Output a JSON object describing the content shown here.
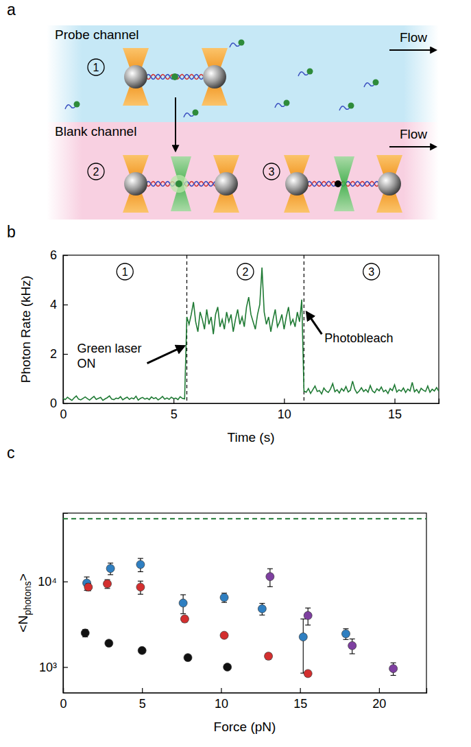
{
  "diagram": {
    "panel": "a",
    "channels": [
      {
        "label": "Probe channel",
        "flow": "Flow"
      },
      {
        "label": "Blank channel",
        "flow": "Flow"
      }
    ],
    "steps": [
      "1",
      "2",
      "3"
    ]
  },
  "chart_data": [
    {
      "type": "line",
      "panel": "b",
      "xlabel": "Time (s)",
      "ylabel": "Photon Rate (kHz)",
      "xlim": [
        0,
        17
      ],
      "ylim": [
        0,
        6
      ],
      "xticks": [
        0,
        5,
        10,
        15
      ],
      "yticks": [
        0,
        2,
        4,
        6
      ],
      "x": [
        0,
        0.1,
        0.2,
        0.3,
        0.4,
        0.5,
        0.6,
        0.7,
        0.8,
        0.9,
        1,
        1.1,
        1.2,
        1.3,
        1.4,
        1.5,
        1.6,
        1.7,
        1.8,
        1.9,
        2,
        2.1,
        2.2,
        2.3,
        2.4,
        2.5,
        2.6,
        2.7,
        2.8,
        2.9,
        3,
        3.1,
        3.2,
        3.3,
        3.4,
        3.5,
        3.6,
        3.7,
        3.8,
        3.9,
        4,
        4.1,
        4.2,
        4.3,
        4.4,
        4.5,
        4.6,
        4.7,
        4.8,
        4.9,
        5,
        5.1,
        5.2,
        5.3,
        5.4,
        5.5,
        5.6,
        5.7,
        5.8,
        5.9,
        6,
        6.1,
        6.2,
        6.3,
        6.4,
        6.5,
        6.6,
        6.7,
        6.8,
        6.9,
        7,
        7.1,
        7.2,
        7.3,
        7.4,
        7.5,
        7.6,
        7.7,
        7.8,
        7.9,
        8,
        8.1,
        8.2,
        8.3,
        8.4,
        8.5,
        8.6,
        8.7,
        8.8,
        8.9,
        9,
        9.1,
        9.2,
        9.3,
        9.4,
        9.5,
        9.6,
        9.7,
        9.8,
        9.9,
        10,
        10.1,
        10.2,
        10.3,
        10.4,
        10.5,
        10.6,
        10.7,
        10.8,
        10.9,
        11,
        11.1,
        11.2,
        11.3,
        11.4,
        11.5,
        11.6,
        11.7,
        11.8,
        11.9,
        12,
        12.1,
        12.2,
        12.3,
        12.4,
        12.5,
        12.6,
        12.7,
        12.8,
        12.9,
        13,
        13.1,
        13.2,
        13.3,
        13.4,
        13.5,
        13.6,
        13.7,
        13.8,
        13.9,
        14,
        14.1,
        14.2,
        14.3,
        14.4,
        14.5,
        14.6,
        14.7,
        14.8,
        14.9,
        15,
        15.1,
        15.2,
        15.3,
        15.4,
        15.5,
        15.6,
        15.7,
        15.8,
        15.9,
        16,
        16.1,
        16.2,
        16.3,
        16.4,
        16.5,
        16.6,
        16.7,
        16.8,
        16.9,
        17
      ],
      "series": [
        {
          "color": "#1f7a34",
          "values": [
            0.2,
            0.15,
            0.25,
            0.18,
            0.12,
            0.22,
            0.3,
            0.17,
            0.14,
            0.2,
            0.26,
            0.19,
            0.13,
            0.21,
            0.28,
            0.16,
            0.2,
            0.24,
            0.12,
            0.18,
            0.23,
            0.3,
            0.17,
            0.15,
            0.21,
            0.19,
            0.27,
            0.14,
            0.2,
            0.25,
            0.16,
            0.22,
            0.18,
            0.29,
            0.13,
            0.2,
            0.24,
            0.17,
            0.21,
            0.15,
            0.26,
            0.19,
            0.23,
            0.14,
            0.2,
            0.28,
            0.17,
            0.22,
            0.16,
            0.25,
            0.19,
            0.21,
            0.15,
            0.27,
            0.2,
            0.18,
            3.5,
            3.2,
            3.6,
            4.1,
            3.3,
            2.9,
            3.7,
            3.4,
            3.0,
            3.8,
            3.2,
            3.5,
            2.8,
            3.6,
            3.9,
            3.1,
            3.4,
            3.0,
            3.7,
            3.3,
            3.6,
            2.9,
            3.4,
            3.8,
            3.2,
            3.5,
            3.1,
            3.9,
            4.3,
            3.6,
            3.3,
            3.0,
            3.6,
            4.0,
            5.5,
            3.7,
            3.2,
            3.5,
            2.9,
            3.4,
            3.8,
            3.1,
            3.3,
            3.6,
            3.0,
            3.5,
            3.9,
            3.2,
            3.4,
            3.1,
            3.7,
            3.3,
            4.2,
            0.5,
            0.45,
            0.6,
            0.4,
            0.55,
            0.7,
            0.48,
            0.52,
            0.38,
            0.62,
            0.5,
            0.44,
            0.58,
            0.8,
            0.47,
            0.55,
            0.42,
            0.6,
            0.5,
            0.68,
            0.46,
            0.53,
            0.9,
            0.57,
            0.41,
            0.5,
            0.63,
            0.48,
            0.56,
            0.45,
            0.72,
            0.5,
            0.43,
            0.59,
            0.51,
            0.66,
            0.47,
            0.54,
            0.4,
            0.6,
            0.52,
            0.75,
            0.46,
            0.55,
            0.49,
            0.62,
            0.44,
            0.58,
            0.5,
            0.85,
            0.47,
            0.56,
            0.42,
            0.61,
            0.53,
            0.48,
            0.7,
            0.45,
            0.57,
            0.5,
            0.64,
            0.49
          ]
        }
      ],
      "events": [
        5.6,
        10.9
      ],
      "region_labels": [
        "1",
        "2",
        "3"
      ],
      "annotations": [
        {
          "text": "Green laser ON",
          "x": 5.6,
          "y": 2.4
        },
        {
          "text": "Photobleach",
          "x": 10.9,
          "y": 3.8
        }
      ]
    },
    {
      "type": "scatter",
      "panel": "c",
      "xlabel": "Force (pN)",
      "ylabel": "<Nphotons>",
      "log": "y",
      "xlim": [
        0,
        23
      ],
      "ylim": [
        500,
        63000
      ],
      "xticks": [
        0,
        5,
        10,
        15,
        20
      ],
      "yticks": [
        {
          "value": 1000,
          "label": "10³"
        },
        {
          "value": 10000,
          "label": "10⁴"
        }
      ],
      "series": [
        {
          "color": "#2f7fc1",
          "marker": "circle",
          "x": [
            1.5,
            3.0,
            4.9,
            7.6,
            10.2,
            12.6,
            15.2,
            17.9
          ],
          "values": [
            9600,
            14200,
            15800,
            5600,
            6500,
            4800,
            2250,
            2450
          ],
          "errors": [
            1700,
            2200,
            2800,
            1400,
            800,
            750,
            1400,
            350
          ]
        },
        {
          "color": "#d32f2f",
          "marker": "circle",
          "x": [
            1.6,
            2.8,
            4.9,
            7.7,
            10.2,
            13.0,
            15.5
          ],
          "values": [
            8600,
            9400,
            8600,
            3650,
            2350,
            1340,
            840
          ],
          "errors": [
            800,
            1100,
            1500,
            300,
            150,
            110,
            60
          ]
        },
        {
          "color": "#111111",
          "marker": "circle",
          "x": [
            1.4,
            2.9,
            5.0,
            7.9,
            10.4
          ],
          "values": [
            2500,
            1900,
            1560,
            1290,
            1000
          ],
          "errors": [
            250,
            150,
            100,
            100,
            50
          ]
        },
        {
          "color": "#7e3fa0",
          "marker": "circle",
          "x": [
            13.1,
            15.5,
            18.3,
            20.9
          ],
          "values": [
            11400,
            4000,
            1780,
            960
          ],
          "errors": [
            2700,
            900,
            350,
            160
          ]
        }
      ],
      "reference_line": {
        "value": 54000,
        "color": "#1f7a34",
        "line_style": "dashed"
      }
    }
  ]
}
